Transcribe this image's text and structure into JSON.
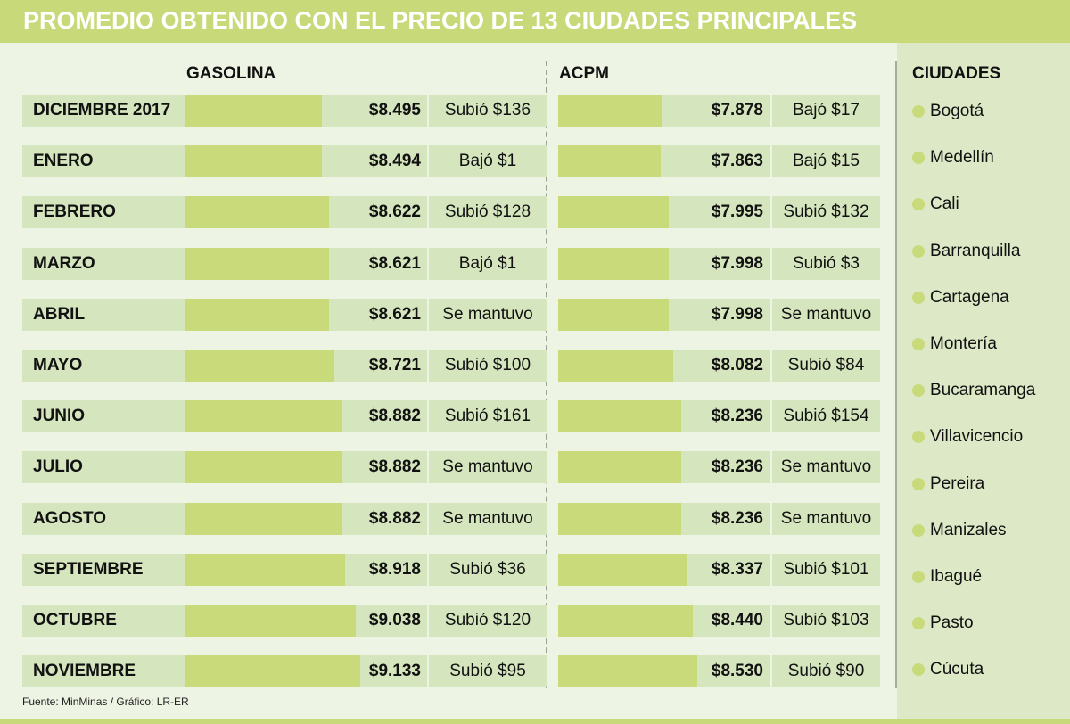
{
  "title": "PROMEDIO OBTENIDO CON EL PRECIO DE 13 CIUDADES PRINCIPALES",
  "columns": {
    "gasolina": "GASOLINA",
    "acpm": "ACPM",
    "ciudades": "CIUDADES"
  },
  "source": "Fuente: MinMinas / Gráfico: LR-ER",
  "colors": {
    "title_bar": "#c8d97a",
    "bar": "#c9da7b",
    "cell": "#d5e5bd",
    "background": "#eef4e4",
    "panel": "#dde9c6"
  },
  "rows": [
    {
      "month": "DICIEMBRE 2017",
      "gas_value": "$8.495",
      "gas_change": "Subió  $136",
      "gas_bar": 154,
      "acpm_value": "$7.878",
      "acpm_change": "Bajó $17",
      "acpm_bar": 116
    },
    {
      "month": "ENERO",
      "gas_value": "$8.494",
      "gas_change": "Bajó $1",
      "gas_bar": 154,
      "acpm_value": "$7.863",
      "acpm_change": "Bajó $15",
      "acpm_bar": 115
    },
    {
      "month": "FEBRERO",
      "gas_value": "$8.622",
      "gas_change": "Subió $128",
      "gas_bar": 162,
      "acpm_value": "$7.995",
      "acpm_change": "Subió $132",
      "acpm_bar": 124
    },
    {
      "month": "MARZO",
      "gas_value": "$8.621",
      "gas_change": "Bajó $1",
      "gas_bar": 162,
      "acpm_value": "$7.998",
      "acpm_change": "Subió $3",
      "acpm_bar": 124
    },
    {
      "month": "ABRIL",
      "gas_value": "$8.621",
      "gas_change": "Se mantuvo",
      "gas_bar": 162,
      "acpm_value": "$7.998",
      "acpm_change": "Se mantuvo",
      "acpm_bar": 124
    },
    {
      "month": "MAYO",
      "gas_value": "$8.721",
      "gas_change": "Subió $100",
      "gas_bar": 168,
      "acpm_value": "$8.082",
      "acpm_change": "Subió $84",
      "acpm_bar": 129
    },
    {
      "month": "JUNIO",
      "gas_value": "$8.882",
      "gas_change": "Subió $161",
      "gas_bar": 177,
      "acpm_value": "$8.236",
      "acpm_change": "Subió $154",
      "acpm_bar": 138
    },
    {
      "month": "JULIO",
      "gas_value": "$8.882",
      "gas_change": "Se mantuvo",
      "gas_bar": 177,
      "acpm_value": "$8.236",
      "acpm_change": "Se mantuvo",
      "acpm_bar": 138
    },
    {
      "month": "AGOSTO",
      "gas_value": "$8.882",
      "gas_change": "Se mantuvo",
      "gas_bar": 177,
      "acpm_value": "$8.236",
      "acpm_change": "Se mantuvo",
      "acpm_bar": 138
    },
    {
      "month": "SEPTIEMBRE",
      "gas_value": "$8.918",
      "gas_change": "Subió $36",
      "gas_bar": 180,
      "acpm_value": "$8.337",
      "acpm_change": "Subió $101",
      "acpm_bar": 145
    },
    {
      "month": "OCTUBRE",
      "gas_value": "$9.038",
      "gas_change": "Subió $120",
      "gas_bar": 192,
      "acpm_value": "$8.440",
      "acpm_change": "Subió $103",
      "acpm_bar": 151
    },
    {
      "month": "NOVIEMBRE",
      "gas_value": "$9.133",
      "gas_change": "Subió $95",
      "gas_bar": 197,
      "acpm_value": "$8.530",
      "acpm_change": "Subió $90",
      "acpm_bar": 156
    }
  ],
  "cities": [
    "Bogotá",
    "Medellín",
    "Cali",
    "Barranquilla",
    "Cartagena",
    "Montería",
    "Bucaramanga",
    "Villavicencio",
    "Pereira",
    "Manizales",
    "Ibagué",
    "Pasto",
    "Cúcuta"
  ],
  "chart_data": {
    "type": "bar",
    "title": "PROMEDIO OBTENIDO CON EL PRECIO DE 13 CIUDADES PRINCIPALES",
    "orientation": "horizontal",
    "categories": [
      "DICIEMBRE 2017",
      "ENERO",
      "FEBRERO",
      "MARZO",
      "ABRIL",
      "MAYO",
      "JUNIO",
      "JULIO",
      "AGOSTO",
      "SEPTIEMBRE",
      "OCTUBRE",
      "NOVIEMBRE"
    ],
    "series": [
      {
        "name": "GASOLINA",
        "values": [
          8495,
          8494,
          8622,
          8621,
          8621,
          8721,
          8882,
          8882,
          8882,
          8918,
          9038,
          9133
        ],
        "changes": [
          "Subió $136",
          "Bajó $1",
          "Subió $128",
          "Bajó $1",
          "Se mantuvo",
          "Subió $100",
          "Subió $161",
          "Se mantuvo",
          "Se mantuvo",
          "Subió $36",
          "Subió $120",
          "Subió $95"
        ]
      },
      {
        "name": "ACPM",
        "values": [
          7878,
          7863,
          7995,
          7998,
          7998,
          8082,
          8236,
          8236,
          8236,
          8337,
          8440,
          8530
        ],
        "changes": [
          "Bajó $17",
          "Bajó $15",
          "Subió $132",
          "Subió $3",
          "Se mantuvo",
          "Subió $84",
          "Subió $154",
          "Se mantuvo",
          "Se mantuvo",
          "Subió $101",
          "Subió $103",
          "Subió $90"
        ]
      }
    ],
    "legend": {
      "title": "CIUDADES",
      "entries": [
        "Bogotá",
        "Medellín",
        "Cali",
        "Barranquilla",
        "Cartagena",
        "Montería",
        "Bucaramanga",
        "Villavicencio",
        "Pereira",
        "Manizales",
        "Ibagué",
        "Pasto",
        "Cúcuta"
      ],
      "position": "right"
    },
    "xlabel": "",
    "ylabel": "",
    "grid": false,
    "source": "Fuente: MinMinas / Gráfico: LR-ER"
  }
}
